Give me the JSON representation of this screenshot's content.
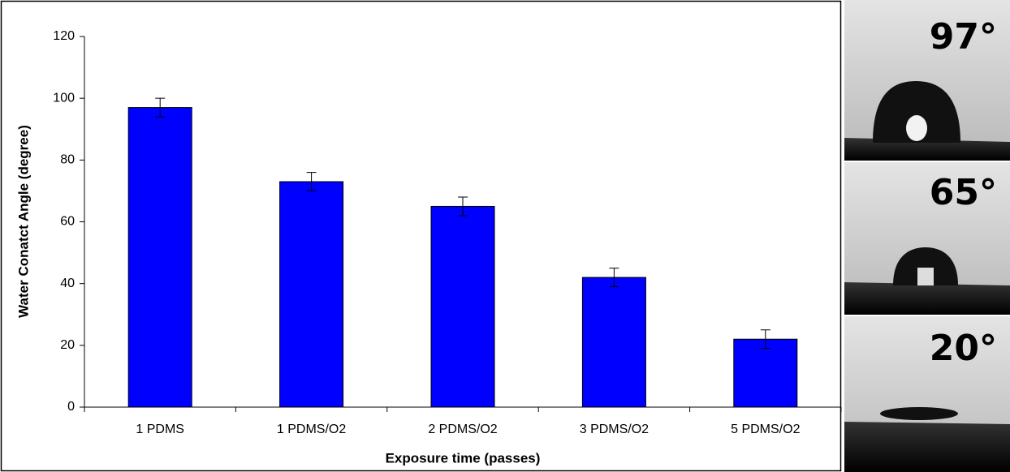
{
  "chart_data": {
    "type": "bar",
    "x_label": "Exposure time  (passes)",
    "y_label": "Water Conatct Angle (degree)",
    "categories": [
      "1 PDMS",
      "1 PDMS/O2",
      "2 PDMS/O2",
      "3 PDMS/O2",
      "5 PDMS/O2"
    ],
    "values": [
      97,
      73,
      65,
      42,
      22
    ],
    "errors": [
      3,
      3,
      3,
      3,
      3
    ],
    "color": "#0000ff",
    "ylim": [
      0,
      120
    ],
    "yticks": [
      0,
      20,
      40,
      60,
      80,
      100,
      120
    ],
    "grid": false
  },
  "photos": [
    {
      "label": "97°"
    },
    {
      "label": "65°"
    },
    {
      "label": "20°"
    }
  ]
}
